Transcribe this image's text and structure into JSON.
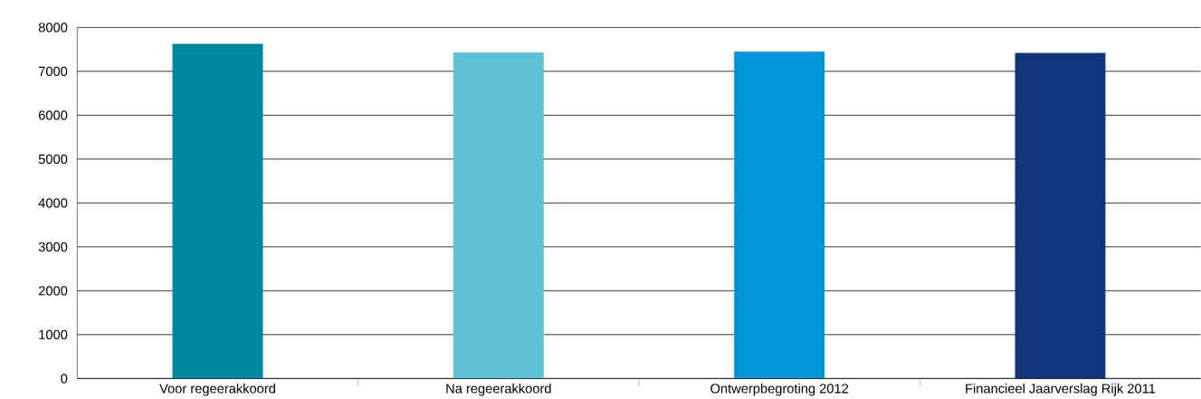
{
  "chart_data": {
    "type": "bar",
    "categories": [
      "Voor regeerakkoord",
      "Na regeerakkoord",
      "Ontwerpbegroting 2012",
      "Financieel Jaarverslag Rijk 2011"
    ],
    "values": [
      7630,
      7430,
      7450,
      7420
    ],
    "colors": [
      "#00889f",
      "#5fc1d6",
      "#0095d8",
      "#11347a"
    ],
    "ylim": [
      0,
      8000
    ],
    "yticks": [
      0,
      1000,
      2000,
      3000,
      4000,
      5000,
      6000,
      7000,
      8000
    ],
    "grid": "y"
  }
}
